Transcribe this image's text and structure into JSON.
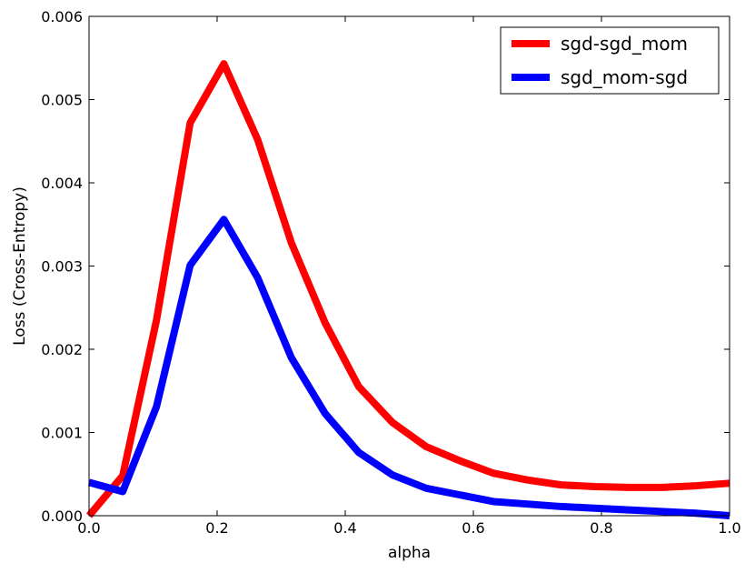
{
  "chart_data": {
    "type": "line",
    "title": "",
    "xlabel": "alpha",
    "ylabel": "Loss (Cross-Entropy)",
    "xlim": [
      0.0,
      1.0
    ],
    "ylim": [
      0.0,
      0.006
    ],
    "grid": false,
    "legend_position": "top-right",
    "x_ticks": [
      0.0,
      0.2,
      0.4,
      0.6,
      0.8,
      1.0
    ],
    "x_tick_labels": [
      "0.0",
      "0.2",
      "0.4",
      "0.6",
      "0.8",
      "1.0"
    ],
    "y_ticks": [
      0.0,
      0.001,
      0.002,
      0.003,
      0.004,
      0.005,
      0.006
    ],
    "y_tick_labels": [
      "0.000",
      "0.001",
      "0.002",
      "0.003",
      "0.004",
      "0.005",
      "0.006"
    ],
    "x": [
      0.0,
      0.0526,
      0.1053,
      0.1579,
      0.2105,
      0.2632,
      0.3158,
      0.3684,
      0.4211,
      0.4737,
      0.5263,
      0.5789,
      0.6316,
      0.6842,
      0.7368,
      0.7895,
      0.8421,
      0.8947,
      0.9474,
      1.0
    ],
    "series": [
      {
        "name": "sgd-sgd_mom",
        "color": "#ff0000",
        "values": [
          0.0,
          0.00048,
          0.00235,
          0.00472,
          0.00543,
          0.00452,
          0.00328,
          0.00232,
          0.00155,
          0.00112,
          0.00083,
          0.00066,
          0.00051,
          0.00043,
          0.00037,
          0.00035,
          0.00034,
          0.00034,
          0.00036,
          0.00039
        ]
      },
      {
        "name": "sgd_mom-sgd",
        "color": "#0000ff",
        "values": [
          0.0004,
          0.00029,
          0.00131,
          0.00301,
          0.00356,
          0.00286,
          0.0019,
          0.00123,
          0.00076,
          0.00049,
          0.00033,
          0.00025,
          0.00017,
          0.00014,
          0.00011,
          9e-05,
          7e-05,
          5e-05,
          3e-05,
          0.0
        ]
      }
    ]
  }
}
